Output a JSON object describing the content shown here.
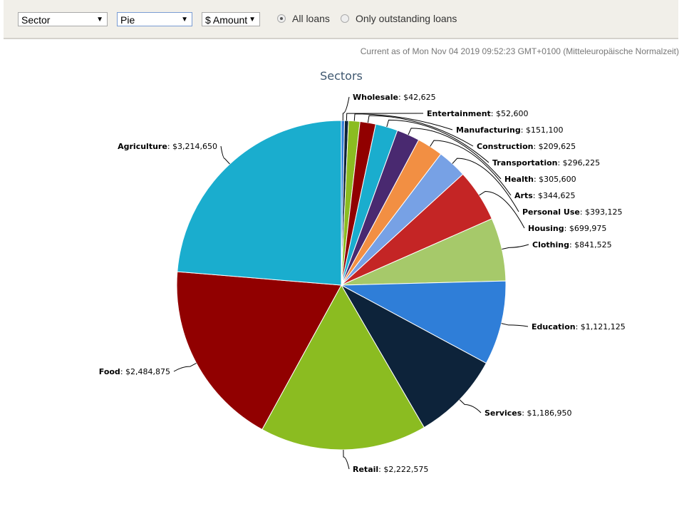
{
  "toolbar": {
    "group_by": "Sector",
    "chart_type": "Pie",
    "measure": "$ Amount",
    "radio_all": "All loans",
    "radio_outstanding": "Only outstanding loans",
    "selected_radio": "All loans"
  },
  "timestamp": "Current as of Mon Nov 04 2019 09:52:23 GMT+0100 (Mitteleuropäische Normalzeit)",
  "chart_data": {
    "type": "pie",
    "title": "Sectors",
    "slices": [
      {
        "label": "Wholesale",
        "value": 42625,
        "display": "$42,625",
        "color": "#2f7ed8"
      },
      {
        "label": "Entertainment",
        "value": 52600,
        "display": "$52,600",
        "color": "#0d233a"
      },
      {
        "label": "Manufacturing",
        "value": 151100,
        "display": "$151,100",
        "color": "#8bbc21"
      },
      {
        "label": "Construction",
        "value": 209625,
        "display": "$209,625",
        "color": "#910000"
      },
      {
        "label": "Transportation",
        "value": 296225,
        "display": "$296,225",
        "color": "#1aadce"
      },
      {
        "label": "Health",
        "value": 305600,
        "display": "$305,600",
        "color": "#492970"
      },
      {
        "label": "Arts",
        "value": 344625,
        "display": "$344,625",
        "color": "#f28f43"
      },
      {
        "label": "Personal Use",
        "value": 393125,
        "display": "$393,125",
        "color": "#77a1e5"
      },
      {
        "label": "Housing",
        "value": 699975,
        "display": "$699,975",
        "color": "#c42525"
      },
      {
        "label": "Clothing",
        "value": 841525,
        "display": "$841,525",
        "color": "#a6c96a"
      },
      {
        "label": "Education",
        "value": 1121125,
        "display": "$1,121,125",
        "color": "#2f7ed8"
      },
      {
        "label": "Services",
        "value": 1186950,
        "display": "$1,186,950",
        "color": "#0d233a"
      },
      {
        "label": "Retail",
        "value": 2222575,
        "display": "$2,222,575",
        "color": "#8bbc21"
      },
      {
        "label": "Food",
        "value": 2484875,
        "display": "$2,484,875",
        "color": "#910000"
      },
      {
        "label": "Agriculture",
        "value": 3214650,
        "display": "$3,214,650",
        "color": "#1aadce"
      }
    ]
  }
}
